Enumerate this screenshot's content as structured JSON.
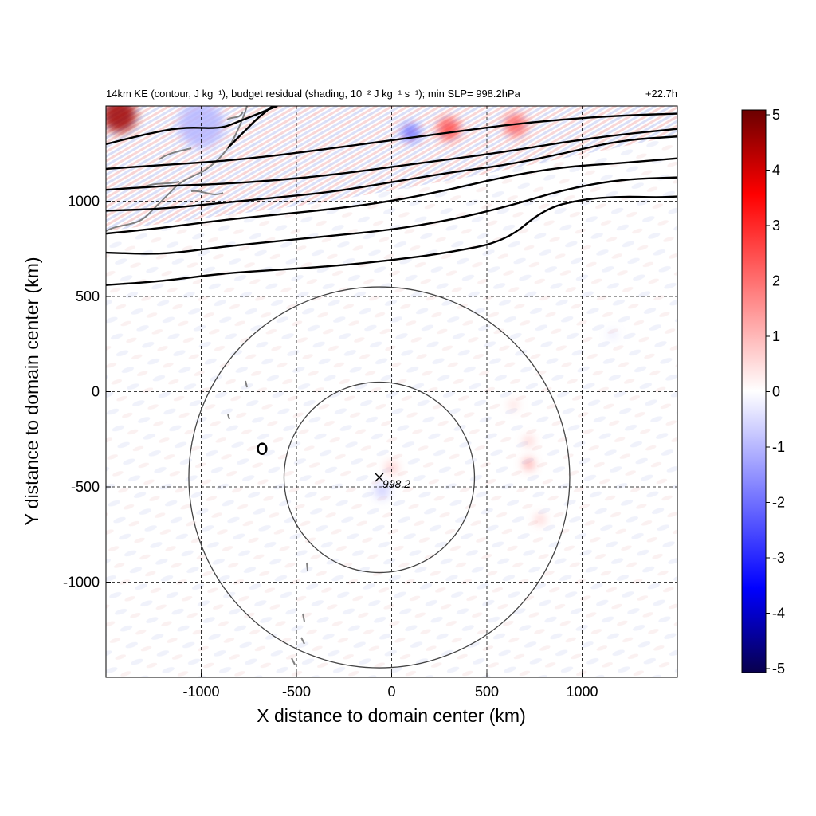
{
  "figure": {
    "title_left": "14km KE (contour, J kg⁻¹), budget residual (shading, 10⁻² J kg⁻¹ s⁻¹); min SLP= 998.2hPa",
    "title_right": "+22.7h"
  },
  "chart_data": {
    "type": "heatmap",
    "title": "14km KE (contour, J kg⁻¹), budget residual (shading, 10⁻² J kg⁻¹ s⁻¹); min SLP= 998.2hPa",
    "subtitle": "+22.7h",
    "xlabel": "X distance to domain center (km)",
    "ylabel": "Y distance to domain center (km)",
    "xlim": [
      -1500,
      1500
    ],
    "ylim": [
      -1500,
      1500
    ],
    "x_ticks": [
      -1000,
      -500,
      0,
      500,
      1000
    ],
    "y_ticks": [
      -1000,
      -500,
      0,
      500,
      1000
    ],
    "x_tick_labels": [
      "-1000",
      "-500",
      "0",
      "500",
      "1000"
    ],
    "y_tick_labels": [
      "-1000",
      "-500",
      "0",
      "500",
      "1000"
    ],
    "grid": true,
    "colorbar": {
      "min": -5,
      "max": 5,
      "ticks": [
        5,
        4,
        3,
        2,
        1,
        0,
        -1,
        -2,
        -3,
        -4,
        -5
      ],
      "tick_labels": [
        "5",
        "4",
        "3",
        "2",
        "1",
        "0",
        "-1",
        "-2",
        "-3",
        "-4",
        "-5"
      ],
      "colors": [
        "#08004d",
        "#0000ff",
        "#ffffff",
        "#ff0000",
        "#6b0000"
      ]
    },
    "storm_center": {
      "x": -65,
      "y": -450,
      "marker": "x",
      "label": "998.2"
    },
    "range_circles_km": [
      500,
      1000
    ],
    "ke_contours": [
      {
        "x": [
          -1500,
          -1200,
          -900,
          -600,
          -300,
          0,
          300,
          600,
          800,
          1000,
          1200,
          1400,
          1500
        ],
        "y": [
          560,
          580,
          620,
          640,
          660,
          690,
          730,
          790,
          960,
          1010,
          1025,
          1020,
          1025
        ]
      },
      {
        "x": [
          -1500,
          -1200,
          -900,
          -600,
          -300,
          0,
          300,
          600,
          900,
          1200,
          1500
        ],
        "y": [
          730,
          720,
          760,
          790,
          820,
          850,
          900,
          970,
          1060,
          1115,
          1125
        ]
      },
      {
        "x": [
          -1500,
          -1200,
          -900,
          -600,
          -300,
          0,
          300,
          600,
          900,
          1200,
          1500
        ],
        "y": [
          830,
          860,
          900,
          930,
          960,
          1000,
          1060,
          1130,
          1180,
          1200,
          1225
        ]
      },
      {
        "x": [
          -1500,
          -1200,
          -900,
          -600,
          -300,
          0,
          300,
          600,
          900,
          1200,
          1500
        ],
        "y": [
          950,
          960,
          990,
          1020,
          1050,
          1100,
          1150,
          1190,
          1250,
          1320,
          1340
        ]
      },
      {
        "x": [
          -1500,
          -1200,
          -900,
          -600,
          -300,
          0,
          300,
          600,
          900,
          1200,
          1500
        ],
        "y": [
          1060,
          1080,
          1090,
          1110,
          1140,
          1180,
          1220,
          1260,
          1310,
          1350,
          1380
        ]
      },
      {
        "x": [
          -1500,
          -1200,
          -900,
          -600,
          -300,
          0,
          300,
          600,
          900,
          1200,
          1500
        ],
        "y": [
          1170,
          1190,
          1210,
          1240,
          1280,
          1320,
          1360,
          1400,
          1430,
          1450,
          1460
        ]
      },
      {
        "x": [
          -1500,
          -1300,
          -1100,
          -900,
          -800,
          -700,
          -600
        ],
        "y": [
          1300,
          1350,
          1390,
          1380,
          1420,
          1460,
          1500
        ]
      },
      {
        "x": [
          -860,
          -800,
          -740,
          -700,
          -660,
          -640,
          -620
        ],
        "y": [
          1280,
          1340,
          1400,
          1440,
          1470,
          1490,
          1500
        ]
      }
    ],
    "ke_closed_contour": {
      "x": -680,
      "y": -300,
      "r": 25
    },
    "residual_blobs": [
      {
        "x": -1430,
        "y": 1450,
        "v": 4.5,
        "r": 90
      },
      {
        "x": 300,
        "y": 1380,
        "v": 2.5,
        "r": 60
      },
      {
        "x": 650,
        "y": 1400,
        "v": 2.2,
        "r": 60
      },
      {
        "x": 100,
        "y": 1360,
        "v": -2.0,
        "r": 50
      },
      {
        "x": -1000,
        "y": 1400,
        "v": -1.0,
        "r": 120
      },
      {
        "x": 720,
        "y": -380,
        "v": 2.0,
        "r": 25
      },
      {
        "x": 720,
        "y": -260,
        "v": 1.5,
        "r": 20
      },
      {
        "x": 780,
        "y": -670,
        "v": 1.5,
        "r": 20
      },
      {
        "x": 640,
        "y": -70,
        "v": 1.0,
        "r": 20
      },
      {
        "x": 0,
        "y": -400,
        "v": 1.0,
        "r": 30
      },
      {
        "x": -50,
        "y": -520,
        "v": -0.8,
        "r": 40
      },
      {
        "x": 1160,
        "y": 300,
        "v": -1.0,
        "r": 15
      }
    ]
  }
}
